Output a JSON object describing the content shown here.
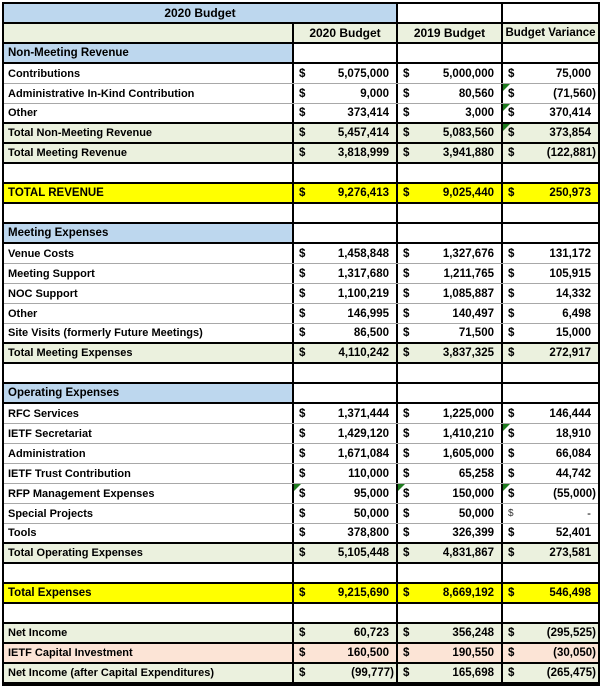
{
  "table": {
    "title": "2020 Budget",
    "columns": [
      "2020 Budget",
      "2019 Budget",
      "Budget Variance"
    ],
    "rows": [
      {
        "type": "section",
        "label": "Non-Meeting Revenue"
      },
      {
        "type": "data",
        "label": "Contributions",
        "v2020": "5,075,000",
        "v2019": "5,000,000",
        "variance": "75,000"
      },
      {
        "type": "data",
        "label": "Administrative In-Kind Contribution",
        "v2020": "9,000",
        "v2019": "80,560",
        "variance": "(71,560)",
        "tri": [
          "variance"
        ]
      },
      {
        "type": "data",
        "label": "Other",
        "v2020": "373,414",
        "v2019": "3,000",
        "variance": "370,414",
        "tri": [
          "variance"
        ]
      },
      {
        "type": "total",
        "label": "Total Non-Meeting Revenue",
        "v2020": "5,457,414",
        "v2019": "5,083,560",
        "variance": "373,854",
        "tri": [
          "variance"
        ]
      },
      {
        "type": "total",
        "label": "Total Meeting Revenue",
        "v2020": "3,818,999",
        "v2019": "3,941,880",
        "variance": "(122,881)"
      },
      {
        "type": "blank"
      },
      {
        "type": "grand",
        "label": "TOTAL REVENUE",
        "v2020": "9,276,413",
        "v2019": "9,025,440",
        "variance": "250,973"
      },
      {
        "type": "blank"
      },
      {
        "type": "section",
        "label": "Meeting Expenses"
      },
      {
        "type": "data",
        "label": "Venue Costs",
        "v2020": "1,458,848",
        "v2019": "1,327,676",
        "variance": "131,172"
      },
      {
        "type": "data",
        "label": "Meeting Support",
        "v2020": "1,317,680",
        "v2019": "1,211,765",
        "variance": "105,915"
      },
      {
        "type": "data",
        "label": "NOC Support",
        "v2020": "1,100,219",
        "v2019": "1,085,887",
        "variance": "14,332"
      },
      {
        "type": "data",
        "label": "Other",
        "v2020": "146,995",
        "v2019": "140,497",
        "variance": "6,498"
      },
      {
        "type": "data",
        "label": "Site Visits (formerly Future Meetings)",
        "v2020": "86,500",
        "v2019": "71,500",
        "variance": "15,000"
      },
      {
        "type": "total",
        "label": "Total Meeting Expenses",
        "v2020": "4,110,242",
        "v2019": "3,837,325",
        "variance": "272,917"
      },
      {
        "type": "blank"
      },
      {
        "type": "section",
        "label": "Operating Expenses"
      },
      {
        "type": "data",
        "label": "RFC Services",
        "v2020": "1,371,444",
        "v2019": "1,225,000",
        "variance": "146,444"
      },
      {
        "type": "data",
        "label": "IETF Secretariat",
        "v2020": "1,429,120",
        "v2019": "1,410,210",
        "variance": "18,910",
        "tri": [
          "variance"
        ]
      },
      {
        "type": "data",
        "label": "Administration",
        "v2020": "1,671,084",
        "v2019": "1,605,000",
        "variance": "66,084"
      },
      {
        "type": "data",
        "label": "IETF Trust Contribution",
        "v2020": "110,000",
        "v2019": "65,258",
        "variance": "44,742"
      },
      {
        "type": "data",
        "label": "RFP Management Expenses",
        "v2020": "95,000",
        "v2019": "150,000",
        "variance": "(55,000)",
        "tri": [
          "v2020",
          "v2019",
          "variance"
        ]
      },
      {
        "type": "data",
        "label": "Special Projects",
        "v2020": "50,000",
        "v2019": "50,000",
        "variance": "-",
        "plainVariance": true
      },
      {
        "type": "data",
        "label": "Tools",
        "v2020": "378,800",
        "v2019": "326,399",
        "variance": "52,401"
      },
      {
        "type": "total",
        "label": "Total Operating Expenses",
        "v2020": "5,105,448",
        "v2019": "4,831,867",
        "variance": "273,581"
      },
      {
        "type": "blank"
      },
      {
        "type": "grand",
        "label": "Total Expenses",
        "v2020": "9,215,690",
        "v2019": "8,669,192",
        "variance": "546,498"
      },
      {
        "type": "blank"
      },
      {
        "type": "total",
        "label": "Net Income",
        "v2020": "60,723",
        "v2019": "356,248",
        "variance": "(295,525)"
      },
      {
        "type": "peach",
        "label": "IETF Capital Investment",
        "v2020": "160,500",
        "v2019": "190,550",
        "variance": "(30,050)"
      },
      {
        "type": "total",
        "label": "Net Income (after Capital Expenditures)",
        "v2020": "(99,777)",
        "v2019": "165,698",
        "variance": "(265,475)"
      }
    ],
    "currency_symbol": "$"
  },
  "colors": {
    "section_header_blue": "#BDD7EE",
    "header_and_total_green": "#EBF1DE",
    "grand_total_yellow": "#FFFF00",
    "capital_row_peach": "#FCE4D6",
    "error_indicator_green": "#1E7B1E",
    "gridline_gray": "#A8A8A8",
    "border_black": "#000000"
  }
}
